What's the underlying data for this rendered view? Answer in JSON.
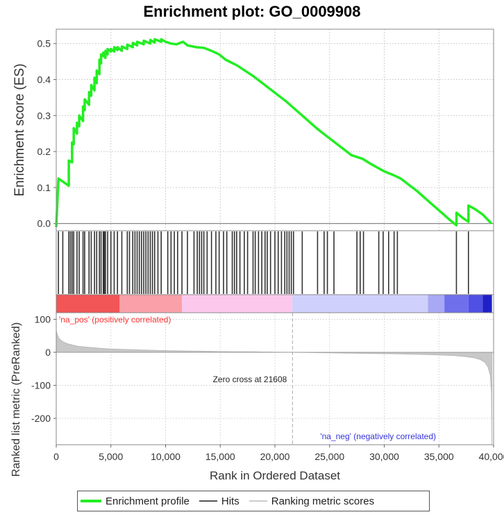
{
  "chart_data": {
    "type": "line",
    "title": "Enrichment plot: GO_0009908",
    "xlabel": "Rank in Ordered Dataset",
    "xlim": [
      0,
      40000
    ],
    "x_ticks": [
      0,
      5000,
      10000,
      15000,
      20000,
      25000,
      30000,
      35000,
      40000
    ],
    "x_tick_labels": [
      "0",
      "5,000",
      "10,000",
      "15,000",
      "20,000",
      "25,000",
      "30,000",
      "35,000",
      "40,000"
    ],
    "grid": true,
    "es_panel": {
      "ylabel": "Enrichment score (ES)",
      "ylim": [
        -0.02,
        0.54
      ],
      "y_ticks": [
        0.0,
        0.1,
        0.2,
        0.3,
        0.4,
        0.5
      ],
      "y_tick_labels": [
        "0.0",
        "0.1",
        "0.2",
        "0.3",
        "0.4",
        "0.5"
      ],
      "series": [
        {
          "name": "Enrichment profile",
          "color": "#22ee22",
          "x": [
            0,
            200,
            200,
            1150,
            1150,
            1450,
            1450,
            1600,
            1600,
            1900,
            1900,
            2100,
            2100,
            2450,
            2450,
            2600,
            2600,
            3000,
            3000,
            3200,
            3200,
            3500,
            3500,
            3700,
            3700,
            3950,
            3950,
            4100,
            4100,
            4300,
            4300,
            4500,
            4500,
            4700,
            4700,
            5000,
            5000,
            5300,
            5300,
            5600,
            5600,
            6000,
            6000,
            6500,
            6500,
            7000,
            7000,
            7400,
            7400,
            8000,
            8000,
            8600,
            8600,
            9000,
            9000,
            9600,
            9600,
            10000,
            10500,
            11000,
            11600,
            12000,
            12800,
            13500,
            14200,
            14900,
            15500,
            16500,
            18000,
            19500,
            21000,
            22500,
            24000,
            25500,
            27000,
            28000,
            28800,
            30000,
            30800,
            31500,
            33000,
            34500,
            36000,
            36600,
            36600,
            37200,
            37700,
            37700,
            38300,
            39000,
            39800
          ],
          "y": [
            -0.01,
            0.125,
            0.125,
            0.105,
            0.175,
            0.17,
            0.225,
            0.22,
            0.265,
            0.25,
            0.28,
            0.27,
            0.3,
            0.285,
            0.325,
            0.315,
            0.345,
            0.33,
            0.365,
            0.355,
            0.385,
            0.37,
            0.405,
            0.39,
            0.425,
            0.415,
            0.455,
            0.445,
            0.47,
            0.465,
            0.475,
            0.46,
            0.48,
            0.47,
            0.485,
            0.478,
            0.485,
            0.478,
            0.49,
            0.482,
            0.49,
            0.48,
            0.492,
            0.485,
            0.497,
            0.49,
            0.502,
            0.495,
            0.505,
            0.498,
            0.508,
            0.5,
            0.51,
            0.503,
            0.512,
            0.505,
            0.512,
            0.505,
            0.5,
            0.498,
            0.505,
            0.495,
            0.49,
            0.488,
            0.48,
            0.47,
            0.455,
            0.44,
            0.41,
            0.375,
            0.34,
            0.3,
            0.26,
            0.225,
            0.19,
            0.18,
            0.165,
            0.145,
            0.135,
            0.125,
            0.09,
            0.05,
            0.01,
            -0.005,
            0.03,
            0.015,
            0.005,
            0.05,
            0.04,
            0.025,
            0.0
          ]
        }
      ]
    },
    "hits": [
      200,
      600,
      1150,
      1300,
      1450,
      1600,
      1900,
      2100,
      2450,
      2600,
      3000,
      3200,
      3500,
      3700,
      3950,
      4100,
      4300,
      4400,
      4500,
      4700,
      5000,
      5300,
      5600,
      6000,
      6500,
      6700,
      7000,
      7200,
      7400,
      7600,
      7800,
      8000,
      8200,
      8400,
      8600,
      8800,
      9000,
      9300,
      9600,
      10200,
      10500,
      10800,
      11100,
      11500,
      12000,
      12600,
      12900,
      13100,
      13300,
      13500,
      13800,
      14200,
      14600,
      14900,
      15300,
      15600,
      16100,
      16300,
      16500,
      16800,
      17200,
      17500,
      18000,
      18200,
      18500,
      18800,
      19100,
      19300,
      19600,
      20000,
      20300,
      20600,
      20900,
      21100,
      21300,
      21500,
      21700,
      22500,
      23900,
      24500,
      24800,
      25400,
      27500,
      27800,
      28100,
      29500,
      29900,
      30400,
      30900,
      31200,
      36600,
      37700
    ],
    "ranking_panel": {
      "ylabel": "Ranked list metric (PreRanked)",
      "ylim": [
        -280,
        120
      ],
      "y_ticks": [
        100,
        0,
        -100,
        -200
      ],
      "y_tick_labels": [
        "100",
        "0",
        "-100",
        "-200"
      ],
      "metric_curve": {
        "x": [
          0,
          100,
          300,
          600,
          1000,
          1500,
          2000,
          3000,
          4000,
          5000,
          6000,
          8000,
          10000,
          12000,
          14000,
          16000,
          18000,
          20000,
          21608,
          23000,
          25000,
          27000,
          29000,
          31000,
          33000,
          35000,
          36500,
          37500,
          38300,
          38800,
          39200,
          39500,
          39700,
          39800,
          39850
        ],
        "y": [
          65,
          52,
          40,
          32,
          26,
          22,
          18,
          15,
          12,
          10,
          9,
          7,
          5,
          4,
          3,
          2,
          1.5,
          0.5,
          0,
          -0.5,
          -1.5,
          -2.5,
          -3.5,
          -4.5,
          -6,
          -8,
          -10,
          -13,
          -17,
          -22,
          -30,
          -45,
          -70,
          -120,
          -280
        ]
      },
      "zero_cross": 21608,
      "zero_cross_label": "Zero cross at 21608",
      "pos_label": "'na_pos' (positively correlated)",
      "neg_label": "'na_neg' (negatively correlated)",
      "pos_color": "#ff3333",
      "neg_color": "#3333dd"
    },
    "heat_bar": [
      {
        "from": 0,
        "to": 5800,
        "color": "#f25555"
      },
      {
        "from": 5800,
        "to": 11500,
        "color": "#f9a0a8"
      },
      {
        "from": 11500,
        "to": 21600,
        "color": "#fcc8ec"
      },
      {
        "from": 21600,
        "to": 34000,
        "color": "#d0d0fc"
      },
      {
        "from": 34000,
        "to": 35500,
        "color": "#a8a8f4"
      },
      {
        "from": 35500,
        "to": 37700,
        "color": "#6f6fec"
      },
      {
        "from": 37700,
        "to": 39000,
        "color": "#5050e4"
      },
      {
        "from": 39000,
        "to": 39850,
        "color": "#2020c8"
      }
    ],
    "legend": [
      {
        "label": "Enrichment profile",
        "color": "#22ee22"
      },
      {
        "label": "Hits",
        "color": "#555555"
      },
      {
        "label": "Ranking metric scores",
        "color": "#cccccc"
      }
    ],
    "legend_position": "bottom"
  }
}
